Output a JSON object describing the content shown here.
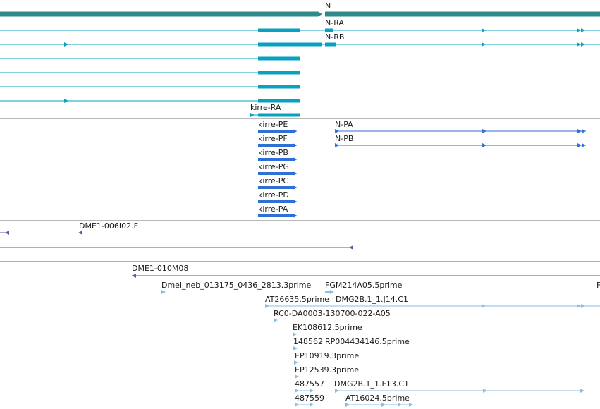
{
  "colors": {
    "gene": "#2e8b8b",
    "transcript": "#0aa0bf",
    "protein": "#2f6fd6",
    "clone": "#6b4fa0",
    "est": "#8bbfe0",
    "track_separator": "#b8b8b8",
    "label": "#1a1a1a"
  },
  "tracks": {
    "gene": {
      "label": "N"
    },
    "transcripts": [
      {
        "label": "N-RA",
        "icon": "exon-block-icon"
      },
      {
        "label": "N-RB",
        "icon": "exon-block-icon"
      },
      {
        "label": "kirre-RA",
        "icon": "exon-block-icon"
      }
    ],
    "proteins": [
      {
        "label": "kirre-PE"
      },
      {
        "label": "kirre-PF"
      },
      {
        "label": "kirre-PB"
      },
      {
        "label": "kirre-PG"
      },
      {
        "label": "kirre-PC"
      },
      {
        "label": "kirre-PD"
      },
      {
        "label": "kirre-PA"
      },
      {
        "label": "N-PA"
      },
      {
        "label": "N-PB"
      }
    ],
    "clones": [
      {
        "label": "DME1-006I02.F"
      },
      {
        "label": "DME1-010M08"
      }
    ],
    "ests": [
      {
        "label": "Dmel_neb_013175_0436_2813.3prime"
      },
      {
        "label": "FGM214A05.5prime"
      },
      {
        "label": "F"
      },
      {
        "label": "AT26635.5prime"
      },
      {
        "label": "DMG2B.1_1.J14.C1"
      },
      {
        "label": "RC0-DA0003-130700-022-A05"
      },
      {
        "label": "EK108612.5prime"
      },
      {
        "label": "148562"
      },
      {
        "label": "RP004434146.5prime"
      },
      {
        "label": "EP10919.3prime"
      },
      {
        "label": "EP12539.3prime"
      },
      {
        "label": "487557"
      },
      {
        "label": "DMG2B.1_1.F13.C1"
      },
      {
        "label": "487559"
      },
      {
        "label": "AT16024.5prime"
      }
    ]
  }
}
